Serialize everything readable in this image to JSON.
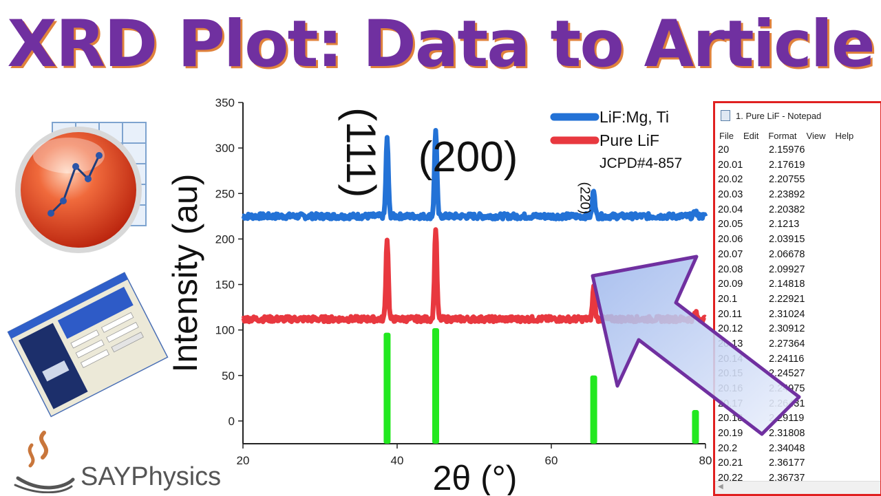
{
  "title": "XRD Plot: Data to Article",
  "brand": {
    "name": "SAYPhysics"
  },
  "notepad": {
    "title": "1. Pure LiF - Notepad",
    "menu": [
      "File",
      "Edit",
      "Format",
      "View",
      "Help"
    ],
    "rows": [
      [
        "20",
        "2.15976"
      ],
      [
        "20.01",
        "2.17619"
      ],
      [
        "20.02",
        "2.20755"
      ],
      [
        "20.03",
        "2.23892"
      ],
      [
        "20.04",
        "2.20382"
      ],
      [
        "20.05",
        "2.1213"
      ],
      [
        "20.06",
        "2.03915"
      ],
      [
        "20.07",
        "2.06678"
      ],
      [
        "20.08",
        "2.09927"
      ],
      [
        "20.09",
        "2.14818"
      ],
      [
        "20.1",
        "2.22921"
      ],
      [
        "20.11",
        "2.31024"
      ],
      [
        "20.12",
        "2.30912"
      ],
      [
        "20.13",
        "2.27364"
      ],
      [
        "20.14",
        "2.24116"
      ],
      [
        "20.15",
        "2.24527"
      ],
      [
        "20.16",
        "2.24975"
      ],
      [
        "20.17",
        "2.26431"
      ],
      [
        "20.18",
        "2.29119"
      ],
      [
        "20.19",
        "2.31808"
      ],
      [
        "20.2",
        "2.34048"
      ],
      [
        "20.21",
        "2.36177"
      ],
      [
        "20.22",
        "2.36737"
      ]
    ]
  },
  "chart_data": {
    "type": "line",
    "xlabel": "2θ (°)",
    "ylabel": "Intensity (au)",
    "xlim": [
      20,
      80
    ],
    "ylim": [
      -25,
      350
    ],
    "xticks": [
      20,
      40,
      60,
      80
    ],
    "yticks": [
      0,
      50,
      100,
      150,
      200,
      250,
      300,
      350
    ],
    "legend_position": "top-right",
    "series": [
      {
        "name": "LiF:Mg, Ti",
        "color": "#2372d6",
        "baseline": 225,
        "peaks": [
          {
            "x": 38.7,
            "y": 310
          },
          {
            "x": 45.0,
            "y": 321
          },
          {
            "x": 65.5,
            "y": 255
          },
          {
            "x": 78.7,
            "y": 230
          }
        ]
      },
      {
        "name": "Pure LiF",
        "color": "#e8383f",
        "baseline": 112,
        "peaks": [
          {
            "x": 38.7,
            "y": 201
          },
          {
            "x": 45.0,
            "y": 212
          },
          {
            "x": 65.5,
            "y": 147
          },
          {
            "x": 78.7,
            "y": 119
          }
        ]
      },
      {
        "name": "JCPD#4-857",
        "color": "#22e81f",
        "type": "bar",
        "bottom": -25,
        "bars": [
          {
            "x": 38.7,
            "y": 97
          },
          {
            "x": 45.0,
            "y": 102
          },
          {
            "x": 65.5,
            "y": 50
          },
          {
            "x": 78.7,
            "y": 12
          }
        ]
      }
    ],
    "annotations": [
      {
        "text": "(111)",
        "x": 33.5,
        "y": 295
      },
      {
        "text": "(200)",
        "x": 49.2,
        "y": 278
      },
      {
        "text": "(220)",
        "x": 63.8,
        "y": 245
      }
    ]
  }
}
